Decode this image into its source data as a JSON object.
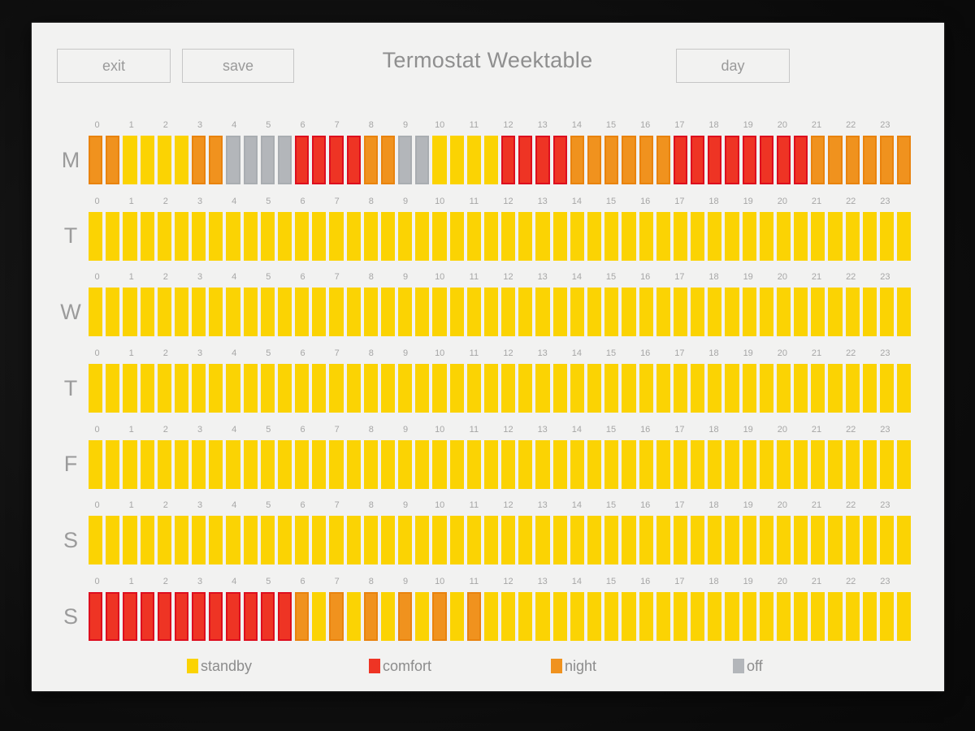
{
  "app": {
    "title": "Termostat Weektable"
  },
  "toolbar": {
    "exit_label": "exit",
    "save_label": "save",
    "day_label": "day"
  },
  "hours": [
    "0",
    "1",
    "2",
    "3",
    "4",
    "5",
    "6",
    "7",
    "8",
    "9",
    "10",
    "11",
    "12",
    "13",
    "14",
    "15",
    "16",
    "17",
    "18",
    "19",
    "20",
    "21",
    "22",
    "23"
  ],
  "states": {
    "s": {
      "name": "standby",
      "fill": "#FBD303",
      "border": "#FBD303"
    },
    "c": {
      "name": "comfort",
      "fill": "#EE3424",
      "border": "#DD0E1E"
    },
    "n": {
      "name": "night",
      "fill": "#F0921E",
      "border": "#E9830E"
    },
    "o": {
      "name": "off",
      "fill": "#B3B6BA",
      "border": "#A9ADB1"
    }
  },
  "legend": [
    {
      "state": "s",
      "label": "standby"
    },
    {
      "state": "c",
      "label": "comfort"
    },
    {
      "state": "n",
      "label": "night"
    },
    {
      "state": "o",
      "label": "off"
    }
  ],
  "week": [
    {
      "day": "M",
      "slots": "nnssssnnooooccccnnoossssccccnnnnnnccccccccnnnnnn"
    },
    {
      "day": "T",
      "slots": "ssssssssssssssssssssssssssssssssssssssssssssssss"
    },
    {
      "day": "W",
      "slots": "ssssssssssssssssssssssssssssssssssssssssssssssss"
    },
    {
      "day": "T",
      "slots": "ssssssssssssssssssssssssssssssssssssssssssssssss"
    },
    {
      "day": "F",
      "slots": "ssssssssssssssssssssssssssssssssssssssssssssssss"
    },
    {
      "day": "S",
      "slots": "ssssssssssssssssssssssssssssssssssssssssssssssss"
    },
    {
      "day": "S",
      "slots": "ccccccccccccnsnsnsnsnsnsssssssssssssssssssssssss"
    }
  ]
}
